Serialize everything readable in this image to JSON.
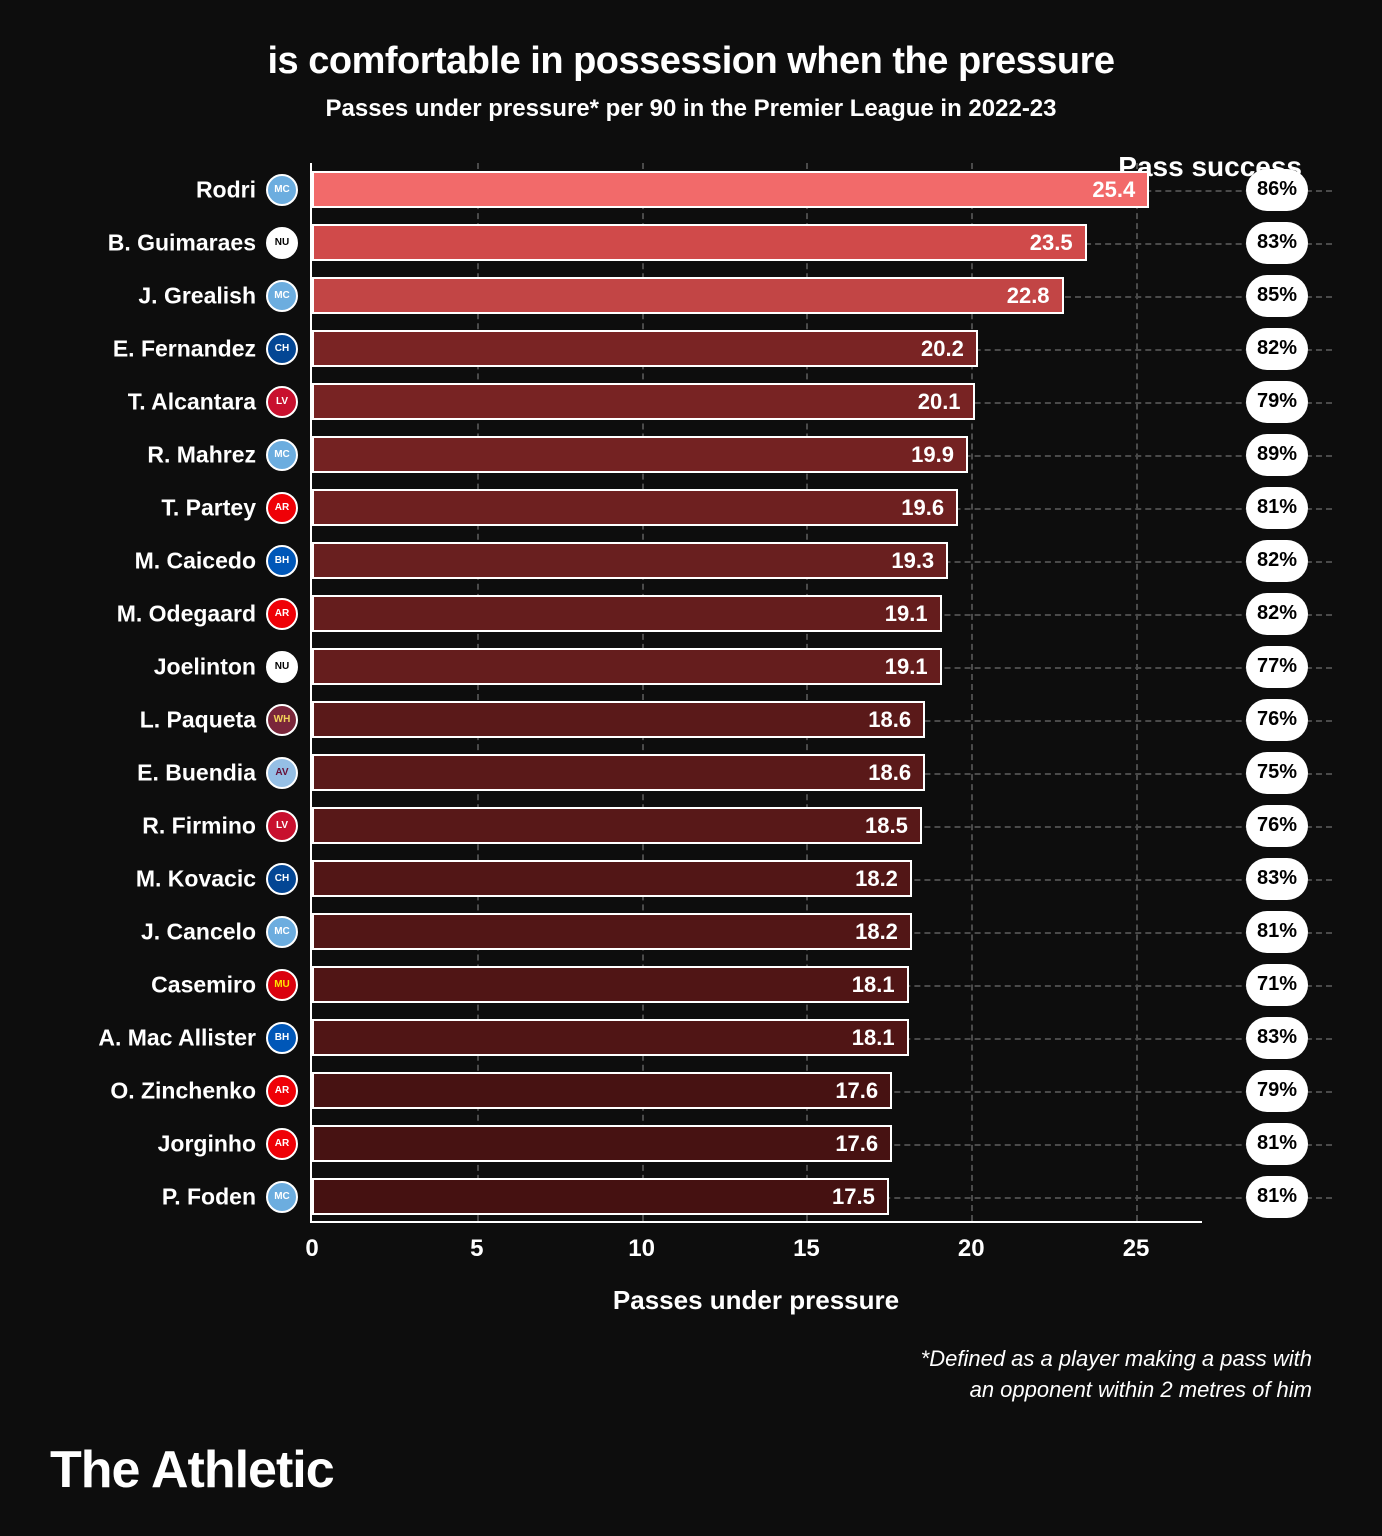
{
  "title": "is comfortable in possession when the pressure",
  "subtitle": "Passes under pressure* per 90 in the Premier League in 2022-23",
  "pass_success_header": "Pass success",
  "x_axis": {
    "label": "Passes under pressure",
    "min": 0,
    "max": 27,
    "ticks": [
      0,
      5,
      10,
      15,
      20,
      25
    ],
    "grid_color": "#4a4a4a"
  },
  "bar_border_color": "#ffffff",
  "background_color": "#0d0d0d",
  "text_color": "#ffffff",
  "pill_bg": "#ffffff",
  "pill_text": "#000000",
  "footnote_line1": "*Defined as a player making a pass with",
  "footnote_line2": "an opponent within 2 metres of him",
  "brand": "The Athletic",
  "clubs": {
    "MCI": {
      "bg": "#6caddf",
      "fg": "#ffffff",
      "abbr": "MC"
    },
    "NEW": {
      "bg": "#ffffff",
      "fg": "#000000",
      "abbr": "NU"
    },
    "CHE": {
      "bg": "#034694",
      "fg": "#ffffff",
      "abbr": "CH"
    },
    "LIV": {
      "bg": "#c8102e",
      "fg": "#ffffff",
      "abbr": "LV"
    },
    "ARS": {
      "bg": "#ef0107",
      "fg": "#ffffff",
      "abbr": "AR"
    },
    "BHA": {
      "bg": "#0057b8",
      "fg": "#ffffff",
      "abbr": "BH"
    },
    "WHU": {
      "bg": "#7a263a",
      "fg": "#f3d459",
      "abbr": "WH"
    },
    "AVL": {
      "bg": "#95bfe5",
      "fg": "#670e36",
      "abbr": "AV"
    },
    "MUN": {
      "bg": "#da020e",
      "fg": "#ffe500",
      "abbr": "MU"
    }
  },
  "players": [
    {
      "name": "Rodri",
      "club": "MCI",
      "value": 25.4,
      "success": "86%",
      "color": "#f26a6a"
    },
    {
      "name": "B. Guimaraes",
      "club": "NEW",
      "value": 23.5,
      "success": "83%",
      "color": "#d04a4a"
    },
    {
      "name": "J. Grealish",
      "club": "MCI",
      "value": 22.8,
      "success": "85%",
      "color": "#c24545"
    },
    {
      "name": "E. Fernandez",
      "club": "CHE",
      "value": 20.2,
      "success": "82%",
      "color": "#7a2424"
    },
    {
      "name": "T. Alcantara",
      "club": "LIV",
      "value": 20.1,
      "success": "79%",
      "color": "#782323"
    },
    {
      "name": "R. Mahrez",
      "club": "MCI",
      "value": 19.9,
      "success": "89%",
      "color": "#742222"
    },
    {
      "name": "T. Partey",
      "club": "ARS",
      "value": 19.6,
      "success": "81%",
      "color": "#6e2020"
    },
    {
      "name": "M. Caicedo",
      "club": "BHA",
      "value": 19.3,
      "success": "82%",
      "color": "#691f1f"
    },
    {
      "name": "M. Odegaard",
      "club": "ARS",
      "value": 19.1,
      "success": "82%",
      "color": "#651d1d"
    },
    {
      "name": "Joelinton",
      "club": "NEW",
      "value": 19.1,
      "success": "77%",
      "color": "#651d1d"
    },
    {
      "name": "L. Paqueta",
      "club": "WHU",
      "value": 18.6,
      "success": "76%",
      "color": "#5a1919"
    },
    {
      "name": "E. Buendia",
      "club": "AVL",
      "value": 18.6,
      "success": "75%",
      "color": "#5a1919"
    },
    {
      "name": "R. Firmino",
      "club": "LIV",
      "value": 18.5,
      "success": "76%",
      "color": "#581818"
    },
    {
      "name": "M. Kovacic",
      "club": "CHE",
      "value": 18.2,
      "success": "83%",
      "color": "#521616"
    },
    {
      "name": "J. Cancelo",
      "club": "MCI",
      "value": 18.2,
      "success": "81%",
      "color": "#521616"
    },
    {
      "name": "Casemiro",
      "club": "MUN",
      "value": 18.1,
      "success": "71%",
      "color": "#501515"
    },
    {
      "name": "A. Mac Allister",
      "club": "BHA",
      "value": 18.1,
      "success": "83%",
      "color": "#501515"
    },
    {
      "name": "O. Zinchenko",
      "club": "ARS",
      "value": 17.6,
      "success": "79%",
      "color": "#471212"
    },
    {
      "name": "Jorginho",
      "club": "ARS",
      "value": 17.6,
      "success": "81%",
      "color": "#471212"
    },
    {
      "name": "P. Foden",
      "club": "MCI",
      "value": 17.5,
      "success": "81%",
      "color": "#451111"
    }
  ]
}
